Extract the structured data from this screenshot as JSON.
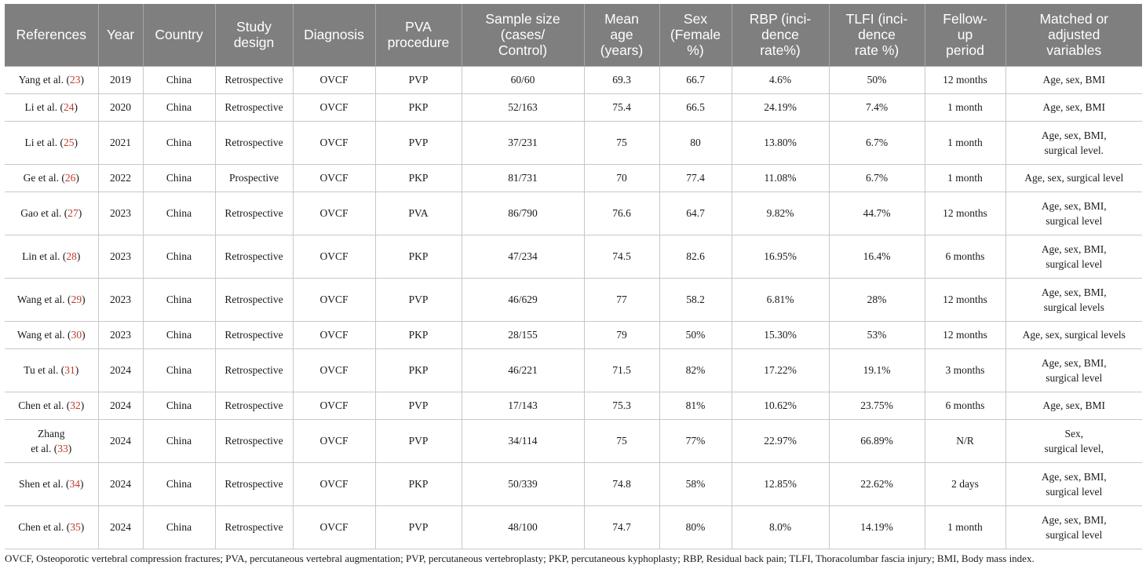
{
  "table": {
    "headers": [
      [
        "References"
      ],
      [
        "Year"
      ],
      [
        "Country"
      ],
      [
        "Study",
        "design"
      ],
      [
        "Diagnosis"
      ],
      [
        "PVA",
        "procedure"
      ],
      [
        "Sample size",
        "(cases/",
        "Control)"
      ],
      [
        "Mean",
        "age",
        "(years)"
      ],
      [
        "Sex",
        "(Female",
        "%)"
      ],
      [
        "RBP (inci-",
        "dence",
        "rate%)"
      ],
      [
        "TLFI (inci-",
        "dence",
        "rate %)"
      ],
      [
        "Fellow-",
        "up",
        "period"
      ],
      [
        "Matched or",
        "adjusted",
        "variables"
      ]
    ],
    "rows": [
      {
        "ref_lines": [
          "Yang et al. ("
        ],
        "ref_num": "23",
        "ref_tail": ")",
        "year": "2019",
        "country": "China",
        "design": "Retrospective",
        "diagnosis": "OVCF",
        "procedure": "PVP",
        "sample": "60/60",
        "age": "69.3",
        "sex": "66.7",
        "rbp": "4.6%",
        "tlfi": "50%",
        "followup": "12 months",
        "variables": [
          "Age, sex, BMI"
        ]
      },
      {
        "ref_lines": [
          "Li et al. ("
        ],
        "ref_num": "24",
        "ref_tail": ")",
        "year": "2020",
        "country": "China",
        "design": "Retrospective",
        "diagnosis": "OVCF",
        "procedure": "PKP",
        "sample": "52/163",
        "age": "75.4",
        "sex": "66.5",
        "rbp": "24.19%",
        "tlfi": "7.4%",
        "followup": "1 month",
        "variables": [
          "Age, sex, BMI"
        ]
      },
      {
        "ref_lines": [
          "Li et al. ("
        ],
        "ref_num": "25",
        "ref_tail": ")",
        "year": "2021",
        "country": "China",
        "design": "Retrospective",
        "diagnosis": "OVCF",
        "procedure": "PVP",
        "sample": "37/231",
        "age": "75",
        "sex": "80",
        "rbp": "13.80%",
        "tlfi": "6.7%",
        "followup": "1 month",
        "variables": [
          "Age, sex, BMI,",
          "surgical level."
        ]
      },
      {
        "ref_lines": [
          "Ge et al. ("
        ],
        "ref_num": "26",
        "ref_tail": ")",
        "year": "2022",
        "country": "China",
        "design": "Prospective",
        "diagnosis": "OVCF",
        "procedure": "PKP",
        "sample": "81/731",
        "age": "70",
        "sex": "77.4",
        "rbp": "11.08%",
        "tlfi": "6.7%",
        "followup": "1 month",
        "variables": [
          "Age, sex, surgical level"
        ]
      },
      {
        "ref_lines": [
          "Gao et al. ("
        ],
        "ref_num": "27",
        "ref_tail": ")",
        "year": "2023",
        "country": "China",
        "design": "Retrospective",
        "diagnosis": "OVCF",
        "procedure": "PVA",
        "sample": "86/790",
        "age": "76.6",
        "sex": "64.7",
        "rbp": "9.82%",
        "tlfi": "44.7%",
        "followup": "12 months",
        "variables": [
          "Age, sex, BMI,",
          "surgical level"
        ]
      },
      {
        "ref_lines": [
          "Lin et al. ("
        ],
        "ref_num": "28",
        "ref_tail": ")",
        "year": "2023",
        "country": "China",
        "design": "Retrospective",
        "diagnosis": "OVCF",
        "procedure": "PKP",
        "sample": "47/234",
        "age": "74.5",
        "sex": "82.6",
        "rbp": "16.95%",
        "tlfi": "16.4%",
        "followup": "6 months",
        "variables": [
          "Age, sex, BMI,",
          "surgical level"
        ]
      },
      {
        "ref_lines": [
          "Wang et al. ("
        ],
        "ref_num": "29",
        "ref_tail": ")",
        "year": "2023",
        "country": "China",
        "design": "Retrospective",
        "diagnosis": "OVCF",
        "procedure": "PVP",
        "sample": "46/629",
        "age": "77",
        "sex": "58.2",
        "rbp": "6.81%",
        "tlfi": "28%",
        "followup": "12 months",
        "variables": [
          "Age, sex, BMI,",
          "surgical levels"
        ]
      },
      {
        "ref_lines": [
          "Wang et al. ("
        ],
        "ref_num": "30",
        "ref_tail": ")",
        "year": "2023",
        "country": "China",
        "design": "Retrospective",
        "diagnosis": "OVCF",
        "procedure": "PKP",
        "sample": "28/155",
        "age": "79",
        "sex": "50%",
        "rbp": "15.30%",
        "tlfi": "53%",
        "followup": "12 months",
        "variables": [
          "Age, sex, surgical levels"
        ]
      },
      {
        "ref_lines": [
          "Tu et al. ("
        ],
        "ref_num": "31",
        "ref_tail": ")",
        "year": "2024",
        "country": "China",
        "design": "Retrospective",
        "diagnosis": "OVCF",
        "procedure": "PKP",
        "sample": "46/221",
        "age": "71.5",
        "sex": "82%",
        "rbp": "17.22%",
        "tlfi": "19.1%",
        "followup": "3 months",
        "variables": [
          "Age, sex, BMI,",
          "surgical level"
        ]
      },
      {
        "ref_lines": [
          "Chen et al. ("
        ],
        "ref_num": "32",
        "ref_tail": ")",
        "year": "2024",
        "country": "China",
        "design": "Retrospective",
        "diagnosis": "OVCF",
        "procedure": "PVP",
        "sample": "17/143",
        "age": "75.3",
        "sex": "81%",
        "rbp": "10.62%",
        "tlfi": "23.75%",
        "followup": "6 months",
        "variables": [
          "Age, sex, BMI"
        ]
      },
      {
        "ref_lines": [
          "Zhang",
          "et al. ("
        ],
        "ref_num": "33",
        "ref_tail": ")",
        "year": "2024",
        "country": "China",
        "design": "Retrospective",
        "diagnosis": "OVCF",
        "procedure": "PVP",
        "sample": "34/114",
        "age": "75",
        "sex": "77%",
        "rbp": "22.97%",
        "tlfi": "66.89%",
        "followup": "N/R",
        "variables": [
          "Sex,",
          "surgical level,"
        ]
      },
      {
        "ref_lines": [
          "Shen et al. ("
        ],
        "ref_num": "34",
        "ref_tail": ")",
        "year": "2024",
        "country": "China",
        "design": "Retrospective",
        "diagnosis": "OVCF",
        "procedure": "PKP",
        "sample": "50/339",
        "age": "74.8",
        "sex": "58%",
        "rbp": "12.85%",
        "tlfi": "22.62%",
        "followup": "2 days",
        "variables": [
          "Age, sex, BMI,",
          "surgical level"
        ]
      },
      {
        "ref_lines": [
          "Chen et al. ("
        ],
        "ref_num": "35",
        "ref_tail": ")",
        "year": "2024",
        "country": "China",
        "design": "Retrospective",
        "diagnosis": "OVCF",
        "procedure": "PVP",
        "sample": "48/100",
        "age": "74.7",
        "sex": "80%",
        "rbp": "8.0%",
        "tlfi": "14.19%",
        "followup": "1 month",
        "variables": [
          "Age, sex, BMI,",
          "surgical level"
        ]
      }
    ]
  },
  "footnote": "OVCF, Osteoporotic vertebral compression fractures; PVA, percutaneous vertebral augmentation; PVP, percutaneous vertebroplasty; PKP, percutaneous kyphoplasty; RBP, Residual back pain; TLFI, Thoracolumbar fascia injury; BMI, Body mass index.",
  "colors": {
    "header_bg": "#7f7f7f",
    "header_text": "#ffffff",
    "ref_link": "#c0392b"
  }
}
